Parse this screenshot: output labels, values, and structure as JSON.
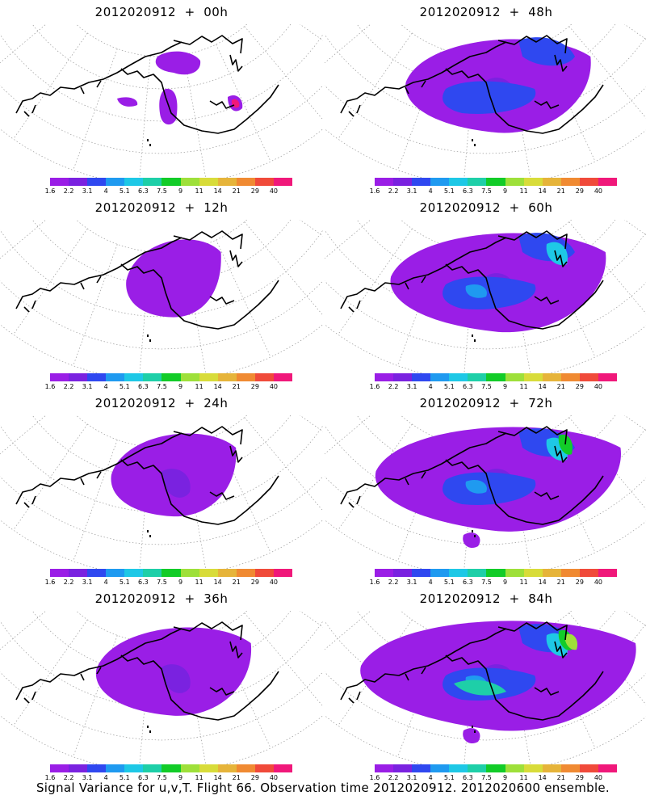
{
  "caption": "Signal Variance for u,v,T. Flight 66. Observation time 2012020912. 2012020600 ensemble.",
  "colorbar": {
    "labels": [
      "1.6",
      "2.2",
      "3.1",
      "4",
      "5.1",
      "6.3",
      "7.5",
      "9",
      "11",
      "14",
      "21",
      "29",
      "40"
    ],
    "colors": [
      "#9a1ee6",
      "#7a22e0",
      "#2f48f0",
      "#1f9af0",
      "#1ec8e6",
      "#1ecfa8",
      "#12cc28",
      "#9ee03a",
      "#d8dc3a",
      "#e6b43a",
      "#f08a32",
      "#f04a3a",
      "#f0187a"
    ]
  },
  "panels": [
    {
      "title": "2012020912 + 00h",
      "lead": 0
    },
    {
      "title": "2012020912 + 48h",
      "lead": 48
    },
    {
      "title": "2012020912 + 12h",
      "lead": 12
    },
    {
      "title": "2012020912 + 60h",
      "lead": 60
    },
    {
      "title": "2012020912 + 24h",
      "lead": 24
    },
    {
      "title": "2012020912 + 72h",
      "lead": 72
    },
    {
      "title": "2012020912 + 36h",
      "lead": 36
    },
    {
      "title": "2012020912 + 84h",
      "lead": 84
    }
  ]
}
